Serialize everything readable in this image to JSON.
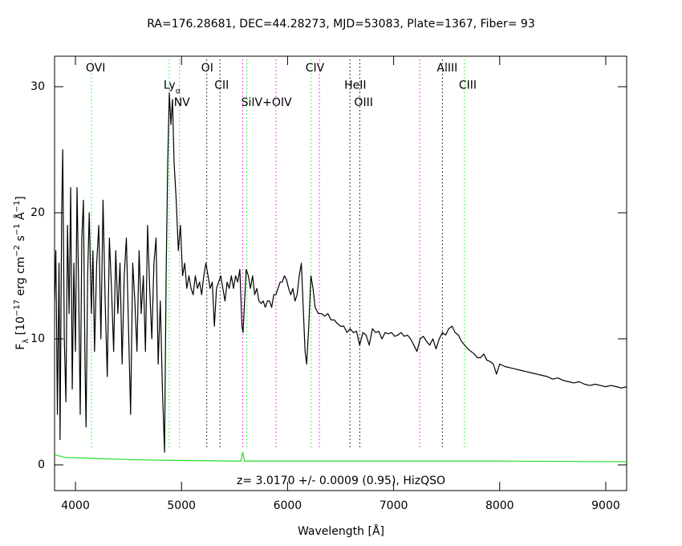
{
  "chart_data": {
    "type": "line",
    "title": "RA=176.28681, DEC=44.28273, MJD=53083, Plate=1367, Fiber= 93",
    "subtitle": "z= 3.0170 +/- 0.0009 (0.95), HizQSO",
    "xlabel": "Wavelength [Å]",
    "ylabel_parts": [
      [
        "F",
        "normal"
      ],
      [
        "λ",
        "sub"
      ],
      [
        " [10",
        "normal"
      ],
      [
        "−17",
        "super"
      ],
      [
        " erg cm",
        "normal"
      ],
      [
        "−2",
        "super"
      ],
      [
        " s",
        "normal"
      ],
      [
        "−1",
        "super"
      ],
      [
        " Å",
        "normal"
      ],
      [
        "−1",
        "super"
      ],
      [
        "]",
        "normal"
      ]
    ],
    "xlim": [
      3803,
      9197
    ],
    "ylim": [
      -2.04,
      32.42
    ],
    "xticks": [
      4000,
      5000,
      6000,
      7000,
      8000,
      9000
    ],
    "yticks": [
      0,
      10,
      20,
      30
    ],
    "series": [
      {
        "color": "#000000",
        "x": [
          3803,
          3815,
          3830,
          3845,
          3855,
          3870,
          3880,
          3895,
          3910,
          3925,
          3940,
          3955,
          3970,
          3985,
          4000,
          4015,
          4030,
          4045,
          4060,
          4075,
          4090,
          4100,
          4115,
          4130,
          4150,
          4165,
          4180,
          4200,
          4220,
          4240,
          4260,
          4280,
          4300,
          4320,
          4340,
          4360,
          4380,
          4400,
          4420,
          4440,
          4460,
          4480,
          4500,
          4520,
          4540,
          4560,
          4580,
          4600,
          4620,
          4640,
          4660,
          4680,
          4700,
          4720,
          4740,
          4760,
          4780,
          4800,
          4820,
          4840,
          4855,
          4870,
          4885,
          4900,
          4915,
          4930,
          4950,
          4970,
          4990,
          5010,
          5030,
          5050,
          5070,
          5090,
          5110,
          5130,
          5150,
          5170,
          5190,
          5210,
          5230,
          5250,
          5270,
          5290,
          5310,
          5330,
          5350,
          5370,
          5390,
          5410,
          5430,
          5450,
          5470,
          5490,
          5510,
          5530,
          5550,
          5570,
          5580,
          5595,
          5610,
          5630,
          5650,
          5670,
          5690,
          5710,
          5730,
          5750,
          5770,
          5790,
          5810,
          5830,
          5850,
          5870,
          5890,
          5910,
          5930,
          5950,
          5970,
          5990,
          6010,
          6030,
          6050,
          6070,
          6090,
          6110,
          6130,
          6150,
          6165,
          6180,
          6200,
          6220,
          6240,
          6260,
          6290,
          6320,
          6350,
          6380,
          6410,
          6440,
          6470,
          6500,
          6530,
          6560,
          6590,
          6620,
          6650,
          6680,
          6710,
          6740,
          6770,
          6800,
          6830,
          6860,
          6890,
          6920,
          6950,
          6980,
          7010,
          7040,
          7070,
          7100,
          7130,
          7160,
          7190,
          7220,
          7250,
          7280,
          7310,
          7340,
          7370,
          7400,
          7430,
          7460,
          7490,
          7520,
          7550,
          7580,
          7610,
          7640,
          7670,
          7700,
          7730,
          7760,
          7790,
          7820,
          7850,
          7880,
          7910,
          7940,
          7970,
          8000,
          8050,
          8100,
          8150,
          8200,
          8250,
          8300,
          8350,
          8400,
          8450,
          8500,
          8550,
          8600,
          8650,
          8700,
          8750,
          8800,
          8850,
          8900,
          8950,
          9000,
          9050,
          9100,
          9150,
          9197
        ],
        "values": [
          13,
          17,
          4,
          16,
          2,
          20,
          25,
          10,
          5,
          19,
          12,
          22,
          6,
          16,
          9,
          22,
          14,
          4,
          18,
          21,
          8,
          3,
          15,
          20,
          12,
          17,
          9,
          16,
          19,
          10,
          21,
          13,
          7,
          18,
          14,
          9,
          17,
          12,
          16,
          8,
          15,
          18,
          11,
          4,
          16,
          13,
          9,
          17,
          12,
          15,
          9,
          19,
          14,
          10,
          16,
          18,
          8,
          13,
          6,
          1,
          15,
          24,
          29.5,
          27,
          29,
          24,
          21,
          17,
          19,
          15,
          16,
          14,
          15,
          14,
          13.5,
          15,
          14,
          14.5,
          13.5,
          15,
          16,
          15,
          14,
          14.5,
          11,
          14,
          14.5,
          15,
          14,
          13,
          14.5,
          14,
          15,
          14,
          15,
          14.5,
          15.5,
          11,
          10.5,
          13,
          15.5,
          15,
          14,
          15,
          13.5,
          14,
          13,
          12.8,
          13,
          12.5,
          13,
          13,
          12.5,
          13.5,
          13.5,
          14,
          14.5,
          14.5,
          15,
          14.7,
          14,
          13.5,
          14,
          13,
          13.5,
          15,
          16,
          12,
          9,
          8,
          11,
          15,
          14,
          12.5,
          12,
          12,
          11.8,
          12,
          11.5,
          11.5,
          11.2,
          11,
          11,
          10.5,
          10.8,
          10.5,
          10.6,
          9.5,
          10.5,
          10.3,
          9.5,
          10.8,
          10.5,
          10.6,
          10,
          10.5,
          10.4,
          10.5,
          10.2,
          10.3,
          10.5,
          10.2,
          10.3,
          10,
          9.5,
          9,
          10,
          10.2,
          9.8,
          9.5,
          10,
          9.2,
          10,
          10.5,
          10.3,
          10.8,
          11,
          10.5,
          10.3,
          9.8,
          9.5,
          9.2,
          9,
          8.8,
          8.5,
          8.5,
          8.8,
          8.3,
          8.2,
          8,
          7.2,
          8,
          7.8,
          7.7,
          7.6,
          7.5,
          7.4,
          7.3,
          7.2,
          7.1,
          7,
          6.8,
          6.9,
          6.7,
          6.6,
          6.5,
          6.6,
          6.4,
          6.3,
          6.4,
          6.3,
          6.2,
          6.3,
          6.2,
          6.1,
          6.2
        ]
      },
      {
        "color": "#22dd22",
        "x": [
          3803,
          3900,
          4200,
          4600,
          5000,
          5560,
          5577,
          5595,
          6000,
          7000,
          8000,
          9197
        ],
        "values": [
          0.8,
          0.6,
          0.5,
          0.4,
          0.35,
          0.3,
          1.0,
          0.3,
          0.3,
          0.3,
          0.3,
          0.25
        ]
      }
    ],
    "lines": [
      {
        "label": "OVI",
        "x": 4150,
        "color": "#00ff00"
      },
      {
        "label": "Ly",
        "sub": "α",
        "x": 4884,
        "color": "#00ff00"
      },
      {
        "label": "NV",
        "x": 4981,
        "color": "#00ff00"
      },
      {
        "label": "OI",
        "x": 5238,
        "color": "#000000"
      },
      {
        "label": "CII",
        "x": 5363,
        "color": "#000000"
      },
      {
        "x": 5577,
        "color": "#ff00ff"
      },
      {
        "label": "SiIV+OIV",
        "x": 5616,
        "color": "#00ff00"
      },
      {
        "x": 5890,
        "color": "#ff00ff"
      },
      {
        "label": "CIV",
        "x": 6222,
        "color": "#00ff00"
      },
      {
        "x": 6300,
        "color": "#ff00ff"
      },
      {
        "label": "HeII",
        "x": 6588,
        "color": "#000000"
      },
      {
        "label": "OIII",
        "x": 6681,
        "color": "#000000"
      },
      {
        "x": 7246,
        "color": "#ff00ff"
      },
      {
        "label": "AlIII",
        "x": 7460,
        "color": "#000000"
      },
      {
        "label": "CIII",
        "x": 7668,
        "color": "#00ff00"
      }
    ]
  }
}
